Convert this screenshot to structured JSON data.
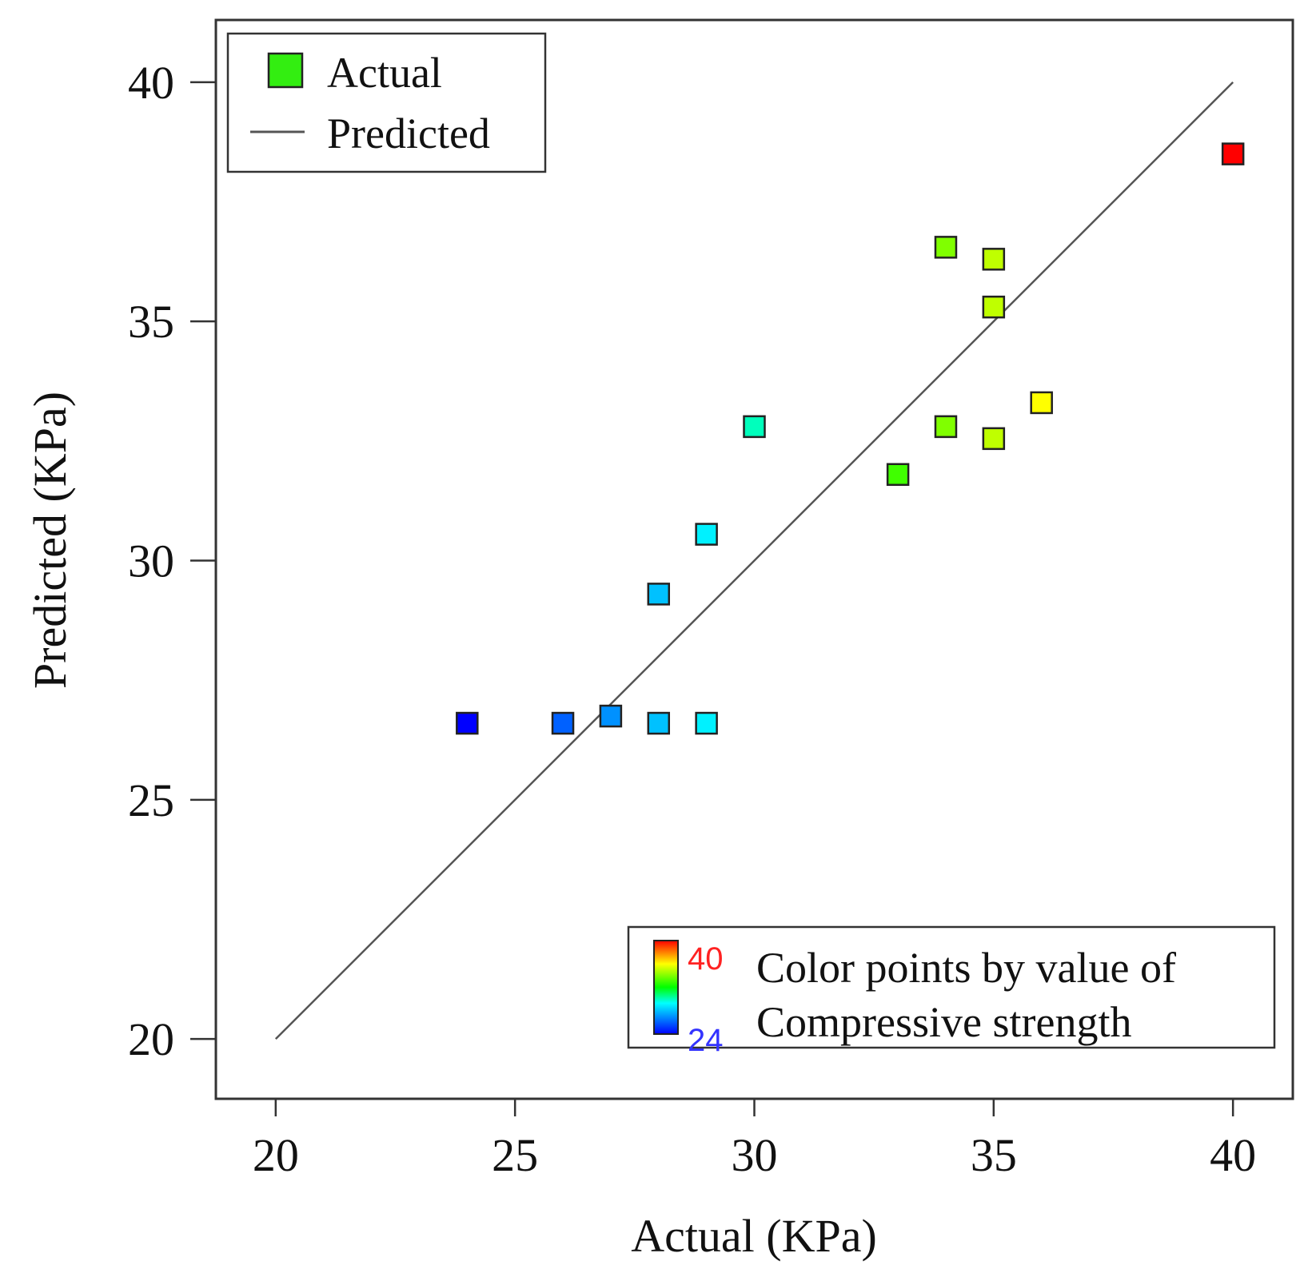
{
  "chart_data": {
    "type": "scatter",
    "title": "",
    "xlabel": "Actual (KPa)",
    "ylabel": "Predicted (KPa)",
    "xlim": [
      18.75,
      41.25
    ],
    "ylim": [
      18.75,
      41.3
    ],
    "xticks": [
      20,
      25,
      30,
      35,
      40
    ],
    "yticks": [
      20,
      25,
      30,
      35,
      40
    ],
    "grid": false,
    "legend": {
      "position": "top-left",
      "entries": [
        {
          "label": "Actual",
          "marker": "square",
          "color": "#33ee11"
        },
        {
          "label": "Predicted",
          "marker": "line",
          "color": "#555555"
        }
      ]
    },
    "reference_line": {
      "name": "Predicted",
      "from": [
        20,
        20
      ],
      "to": [
        40,
        40
      ],
      "color": "#555555"
    },
    "color_scale": {
      "position": "bottom-right",
      "min": 24,
      "max": 40,
      "min_label": "24",
      "max_label": "40",
      "min_color": "#3333ff",
      "max_color": "#ff2222",
      "caption_line1": "Color points by value of",
      "caption_line2": "Compressive strength"
    },
    "points": [
      {
        "x": 24,
        "y": 26.6
      },
      {
        "x": 26,
        "y": 26.6
      },
      {
        "x": 27,
        "y": 26.75
      },
      {
        "x": 28,
        "y": 26.6
      },
      {
        "x": 29,
        "y": 26.6
      },
      {
        "x": 28,
        "y": 29.3
      },
      {
        "x": 29,
        "y": 30.55
      },
      {
        "x": 30,
        "y": 32.8
      },
      {
        "x": 33,
        "y": 31.8
      },
      {
        "x": 34,
        "y": 32.8
      },
      {
        "x": 34,
        "y": 36.55
      },
      {
        "x": 35,
        "y": 32.55
      },
      {
        "x": 35,
        "y": 35.3
      },
      {
        "x": 35,
        "y": 36.3
      },
      {
        "x": 36,
        "y": 33.3
      },
      {
        "x": 40,
        "y": 38.5
      }
    ]
  }
}
